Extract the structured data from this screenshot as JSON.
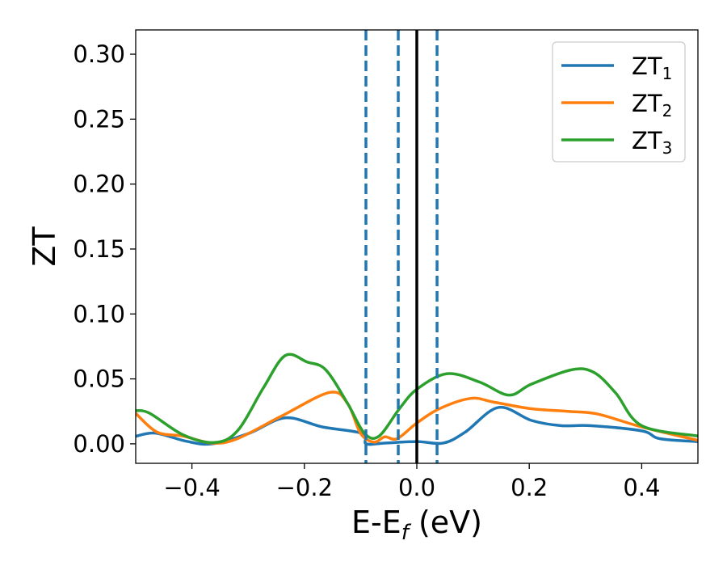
{
  "chart_data": {
    "type": "line",
    "title": "",
    "xlabel": "E-E",
    "xlabel_sub": "f",
    "xlabel_unit": " (eV)",
    "ylabel": "ZT",
    "xlim": [
      -0.5,
      0.5
    ],
    "ylim": [
      -0.015,
      0.3187
    ],
    "grid": false,
    "legend_position": "top-right",
    "xticks": [
      -0.4,
      -0.2,
      0.0,
      0.2,
      0.4
    ],
    "xtick_labels": [
      "−0.4",
      "−0.2",
      "0.0",
      "0.2",
      "0.4"
    ],
    "yticks": [
      0,
      0.05,
      0.1,
      0.15,
      0.2,
      0.25,
      0.3
    ],
    "ytick_labels": [
      "0.00",
      "0.05",
      "0.10",
      "0.15",
      "0.20",
      "0.25",
      "0.30"
    ],
    "vertical_lines": [
      {
        "x": 0.0,
        "style": "solid",
        "color": "#000000"
      },
      {
        "x": -0.0905,
        "style": "dashed",
        "color": "#1f77b4"
      },
      {
        "x": -0.033,
        "style": "dashed",
        "color": "#1f77b4"
      },
      {
        "x": 0.036,
        "style": "dashed",
        "color": "#1f77b4"
      }
    ],
    "series": [
      {
        "name": "ZT",
        "sub": "1",
        "color": "#1f77b4",
        "x": [
          -0.5,
          -0.465,
          -0.41,
          -0.364,
          -0.299,
          -0.234,
          -0.168,
          -0.097,
          -0.09,
          -0.057,
          0.0,
          0.047,
          0.086,
          0.145,
          0.204,
          0.256,
          0.308,
          0.4,
          0.432,
          0.5
        ],
        "y": [
          0.0058,
          0.0083,
          0.002,
          0.0,
          0.008,
          0.02,
          0.013,
          0.008,
          0.0,
          0.0006,
          0.0017,
          0.0006,
          0.009,
          0.028,
          0.018,
          0.014,
          0.014,
          0.01,
          0.004,
          0.0017
        ]
      },
      {
        "name": "ZT",
        "sub": "2",
        "color": "#ff7f0e",
        "x": [
          -0.5,
          -0.462,
          -0.416,
          -0.364,
          -0.319,
          -0.24,
          -0.155,
          -0.123,
          -0.1,
          -0.076,
          -0.057,
          -0.035,
          0.0,
          0.04,
          0.096,
          0.138,
          0.204,
          0.269,
          0.321,
          0.4,
          0.5
        ],
        "y": [
          0.0235,
          0.009,
          0.006,
          0.0006,
          0.004,
          0.0215,
          0.0396,
          0.031,
          0.008,
          0.0013,
          0.0054,
          0.004,
          0.016,
          0.027,
          0.035,
          0.032,
          0.027,
          0.025,
          0.023,
          0.013,
          0.0027
        ]
      },
      {
        "name": "ZT",
        "sub": "3",
        "color": "#2ca02c",
        "x": [
          -0.5,
          -0.475,
          -0.416,
          -0.36,
          -0.319,
          -0.273,
          -0.234,
          -0.195,
          -0.162,
          -0.123,
          -0.093,
          -0.067,
          -0.031,
          0.0,
          0.054,
          0.112,
          0.164,
          0.204,
          0.275,
          0.315,
          0.354,
          0.4,
          0.5
        ],
        "y": [
          0.0256,
          0.0235,
          0.007,
          0.001,
          0.01,
          0.043,
          0.068,
          0.063,
          0.057,
          0.031,
          0.008,
          0.006,
          0.027,
          0.042,
          0.054,
          0.0475,
          0.0375,
          0.046,
          0.057,
          0.055,
          0.039,
          0.014,
          0.006
        ]
      }
    ]
  }
}
